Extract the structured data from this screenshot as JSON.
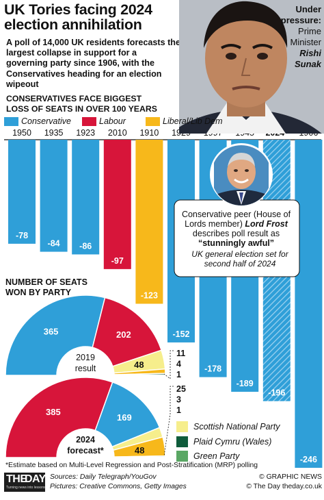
{
  "headline": [
    "UK Tories facing 2024",
    "election annihilation"
  ],
  "intro": "A poll of 14,000 UK residents forecasts the largest collapse in support for a governing party since 1906, with the Conservatives heading for an election wipeout",
  "photo_caption": {
    "lead": [
      "Under",
      "pressure:"
    ],
    "role": [
      "Prime",
      "Minister"
    ],
    "name": [
      "Rishi",
      "Sunak"
    ]
  },
  "colors": {
    "conservative": "#2f9fd8",
    "labour": "#d7153a",
    "libdem": "#f7b81b",
    "snp": "#f6ee8c",
    "plaid": "#0f5c3c",
    "green": "#5aa764"
  },
  "chart_data": [
    {
      "type": "bar",
      "title": [
        "CONSERVATIVES FACE BIGGEST",
        "LOSS OF SEATS IN OVER 100 YEARS"
      ],
      "legend": [
        "Conservative",
        "Labour",
        "Liberal/Lib Dem"
      ],
      "categories": [
        "1950",
        "1935",
        "1923",
        "2010",
        "1910",
        "1929",
        "1997",
        "1945",
        "2024*",
        "1906"
      ],
      "party": [
        "Conservative",
        "Conservative",
        "Conservative",
        "Labour",
        "Liberal/Lib Dem",
        "Conservative",
        "Conservative",
        "Conservative",
        "Conservative",
        "Conservative"
      ],
      "values": [
        -78,
        -84,
        -86,
        -97,
        -123,
        -152,
        -178,
        -189,
        -196,
        -246
      ],
      "value_labels": [
        "-78",
        "-84",
        "-86",
        "-97",
        "-123",
        "-152",
        "-178",
        "-189",
        "-196",
        "-246"
      ],
      "forecast_category": "2024*",
      "ylim": [
        -246,
        0
      ]
    },
    {
      "type": "pie",
      "title": [
        "NUMBER OF SEATS",
        "WON BY PARTY"
      ],
      "charts": [
        {
          "label": [
            "2019",
            "result"
          ],
          "slices": [
            {
              "party": "Conservative",
              "value": 365
            },
            {
              "party": "Labour",
              "value": 202
            },
            {
              "party": "Scottish National Party",
              "value": 48
            },
            {
              "party": "Liberal/Lib Dem",
              "value": 11
            },
            {
              "party": "Plaid Cymru (Wales)",
              "value": 4
            },
            {
              "party": "Green Party",
              "value": 1
            }
          ],
          "labels": [
            "365",
            "202",
            "48",
            "11",
            "4",
            "1"
          ]
        },
        {
          "label": [
            "2024",
            "forecast*"
          ],
          "slices": [
            {
              "party": "Labour",
              "value": 385
            },
            {
              "party": "Conservative",
              "value": 169
            },
            {
              "party": "Scottish National Party",
              "value": 25
            },
            {
              "party": "Liberal/Lib Dem",
              "value": 48
            },
            {
              "party": "Plaid Cymru (Wales)",
              "value": 3
            },
            {
              "party": "Green Party",
              "value": 1
            }
          ],
          "labels": [
            "385",
            "169",
            "25",
            "48",
            "3",
            "1"
          ]
        }
      ]
    }
  ],
  "party_legend": [
    "Scottish National Party",
    "Plaid Cymru (Wales)",
    "Green Party"
  ],
  "peer_caption": {
    "pre": "Conservative peer (House of Lords member)",
    "name": "Lord Frost",
    "mid": "describes poll result as",
    "quote": "“stunningly awful”"
  },
  "election_note": "UK general election set for second half of 2024",
  "footnote": "*Estimate based on Multi-Level Regression and Post-Stratification (MRP) polling",
  "sources": [
    "Sources: Daily Telegraph/YouGov",
    "Pictures: Creative Commons, Getty Images"
  ],
  "credits": [
    "© GRAPHIC NEWS",
    "© The Day   theday.co.uk"
  ],
  "logo": {
    "the": "THE",
    "day": "DAY",
    "tagline": "Turning news into lessons"
  }
}
